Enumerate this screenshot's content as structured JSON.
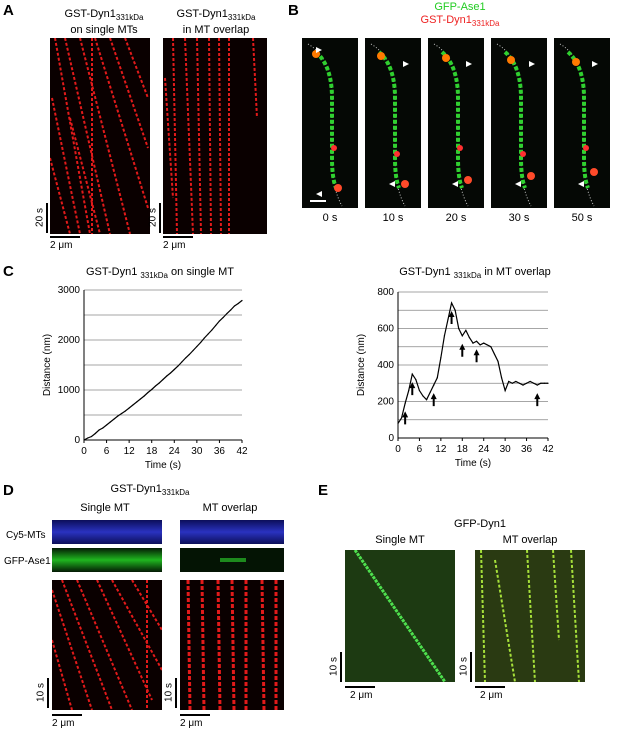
{
  "panel_labels": {
    "A": "A",
    "B": "B",
    "C": "C",
    "D": "D",
    "E": "E"
  },
  "panelA": {
    "left_title_1": "GST-Dyn1",
    "left_title_sub": "331kDa",
    "left_title_2": "on single MTs",
    "right_title_1": "GST-Dyn1",
    "right_title_sub": "331kDa",
    "right_title_2": "in MT overlap",
    "time_scale": "20 s",
    "space_scale": "2 μm"
  },
  "panelB": {
    "legend_green": "GFP-Ase1",
    "legend_red_main": "GST-Dyn1",
    "legend_red_sub": "331kDa",
    "legend_green_color": "#22cc22",
    "legend_red_color": "#ee2222",
    "timepoints": [
      "0 s",
      "10 s",
      "20 s",
      "30 s",
      "50 s"
    ]
  },
  "panelC": {
    "left_title_main": "GST-Dyn1",
    "left_title_sub": "331kDa",
    "left_title_rest": "on single MT",
    "right_title_main": "GST-Dyn1",
    "right_title_sub": "331kDa",
    "right_title_rest": "in MT overlap"
  },
  "chart_data": [
    {
      "type": "line",
      "title": "GST-Dyn1 331kDa on single MT",
      "xlabel": "Time (s)",
      "ylabel": "Distance (nm)",
      "xlim": [
        0,
        42
      ],
      "ylim": [
        0,
        3000
      ],
      "xticks": [
        0,
        6,
        12,
        18,
        24,
        30,
        36,
        42
      ],
      "yticks": [
        0,
        1000,
        2000,
        3000
      ],
      "grid": true,
      "x": [
        0,
        1,
        2,
        3,
        4,
        5,
        6,
        7,
        8,
        9,
        10,
        11,
        12,
        13,
        14,
        15,
        16,
        17,
        18,
        19,
        20,
        21,
        22,
        23,
        24,
        25,
        26,
        27,
        28,
        29,
        30,
        31,
        32,
        33,
        34,
        35,
        36,
        37,
        38,
        39,
        40,
        41,
        42
      ],
      "y": [
        0,
        40,
        70,
        130,
        200,
        240,
        300,
        360,
        420,
        480,
        530,
        580,
        640,
        700,
        760,
        820,
        880,
        950,
        1010,
        1080,
        1140,
        1210,
        1280,
        1340,
        1410,
        1480,
        1560,
        1640,
        1710,
        1790,
        1870,
        1950,
        2040,
        2120,
        2200,
        2290,
        2380,
        2450,
        2530,
        2600,
        2680,
        2730,
        2790
      ]
    },
    {
      "type": "line",
      "title": "GST-Dyn1 331kDa in MT overlap",
      "xlabel": "Time (s)",
      "ylabel": "Distance (nm)",
      "xlim": [
        0,
        42
      ],
      "ylim": [
        0,
        800
      ],
      "xticks": [
        0,
        6,
        12,
        18,
        24,
        30,
        36,
        42
      ],
      "yticks": [
        0,
        200,
        400,
        600,
        800
      ],
      "grid": true,
      "x": [
        0,
        1,
        2,
        3,
        4,
        5,
        6,
        7,
        8,
        9,
        10,
        11,
        12,
        13,
        14,
        15,
        16,
        17,
        18,
        19,
        20,
        21,
        22,
        23,
        24,
        25,
        26,
        27,
        28,
        29,
        30,
        31,
        32,
        33,
        34,
        35,
        36,
        37,
        38,
        39,
        40,
        41,
        42
      ],
      "y": [
        80,
        110,
        190,
        260,
        350,
        320,
        260,
        230,
        210,
        250,
        290,
        330,
        440,
        560,
        650,
        740,
        700,
        600,
        560,
        590,
        550,
        520,
        530,
        510,
        520,
        510,
        500,
        460,
        420,
        330,
        260,
        310,
        300,
        310,
        300,
        290,
        300,
        310,
        300,
        290,
        300,
        300,
        300
      ],
      "arrows_at_x": [
        2,
        4,
        10,
        15,
        18,
        22,
        39
      ]
    }
  ],
  "panelD": {
    "title_main": "GST-Dyn1",
    "title_sub": "331kDa",
    "col1": "Single MT",
    "col2": "MT overlap",
    "row1": "Cy5-MTs",
    "row2": "GFP-Ase1",
    "time_scale": "10 s",
    "space_scale": "2 μm"
  },
  "panelE": {
    "title": "GFP-Dyn1",
    "col1": "Single MT",
    "col2": "MT overlap",
    "time_scale": "10 s",
    "space_scale": "2 μm"
  }
}
